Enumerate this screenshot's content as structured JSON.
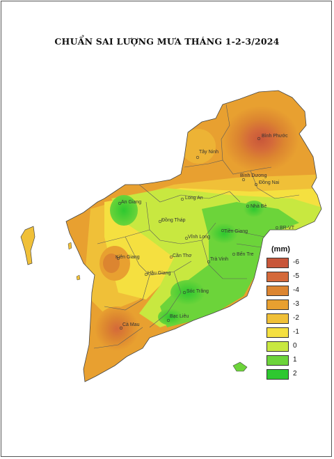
{
  "title": "CHUẨN SAI LƯỢNG MƯA THÁNG 1-2-3/2024",
  "legend": {
    "unit": "(mm)",
    "items": [
      {
        "label": "-6",
        "color": "#c8563a"
      },
      {
        "label": "-5",
        "color": "#d4693a"
      },
      {
        "label": "-4",
        "color": "#dc8530"
      },
      {
        "label": "-3",
        "color": "#e8a030"
      },
      {
        "label": "-2",
        "color": "#f0c038"
      },
      {
        "label": "-1",
        "color": "#f5e040"
      },
      {
        "label": "0",
        "color": "#c8e840"
      },
      {
        "label": "1",
        "color": "#6cd43a"
      },
      {
        "label": "2",
        "color": "#2ec830"
      }
    ]
  },
  "places": [
    {
      "name": "Bình Phước"
    },
    {
      "name": "Tây Ninh"
    },
    {
      "name": "Bình Dương"
    },
    {
      "name": "Đồng Nai"
    },
    {
      "name": "Long An"
    },
    {
      "name": "An Giang"
    },
    {
      "name": "Nhà Bè"
    },
    {
      "name": "Đồng Tháp"
    },
    {
      "name": "Tiền Giang"
    },
    {
      "name": "BR-VT"
    },
    {
      "name": "Vĩnh Long"
    },
    {
      "name": "Bến Tre"
    },
    {
      "name": "Cần Thơ"
    },
    {
      "name": "Kiên Giang"
    },
    {
      "name": "Trà Vinh"
    },
    {
      "name": "Hậu Giang"
    },
    {
      "name": "Sóc Trăng"
    },
    {
      "name": "Bạc Liêu"
    },
    {
      "name": "Cà Mau"
    }
  ]
}
